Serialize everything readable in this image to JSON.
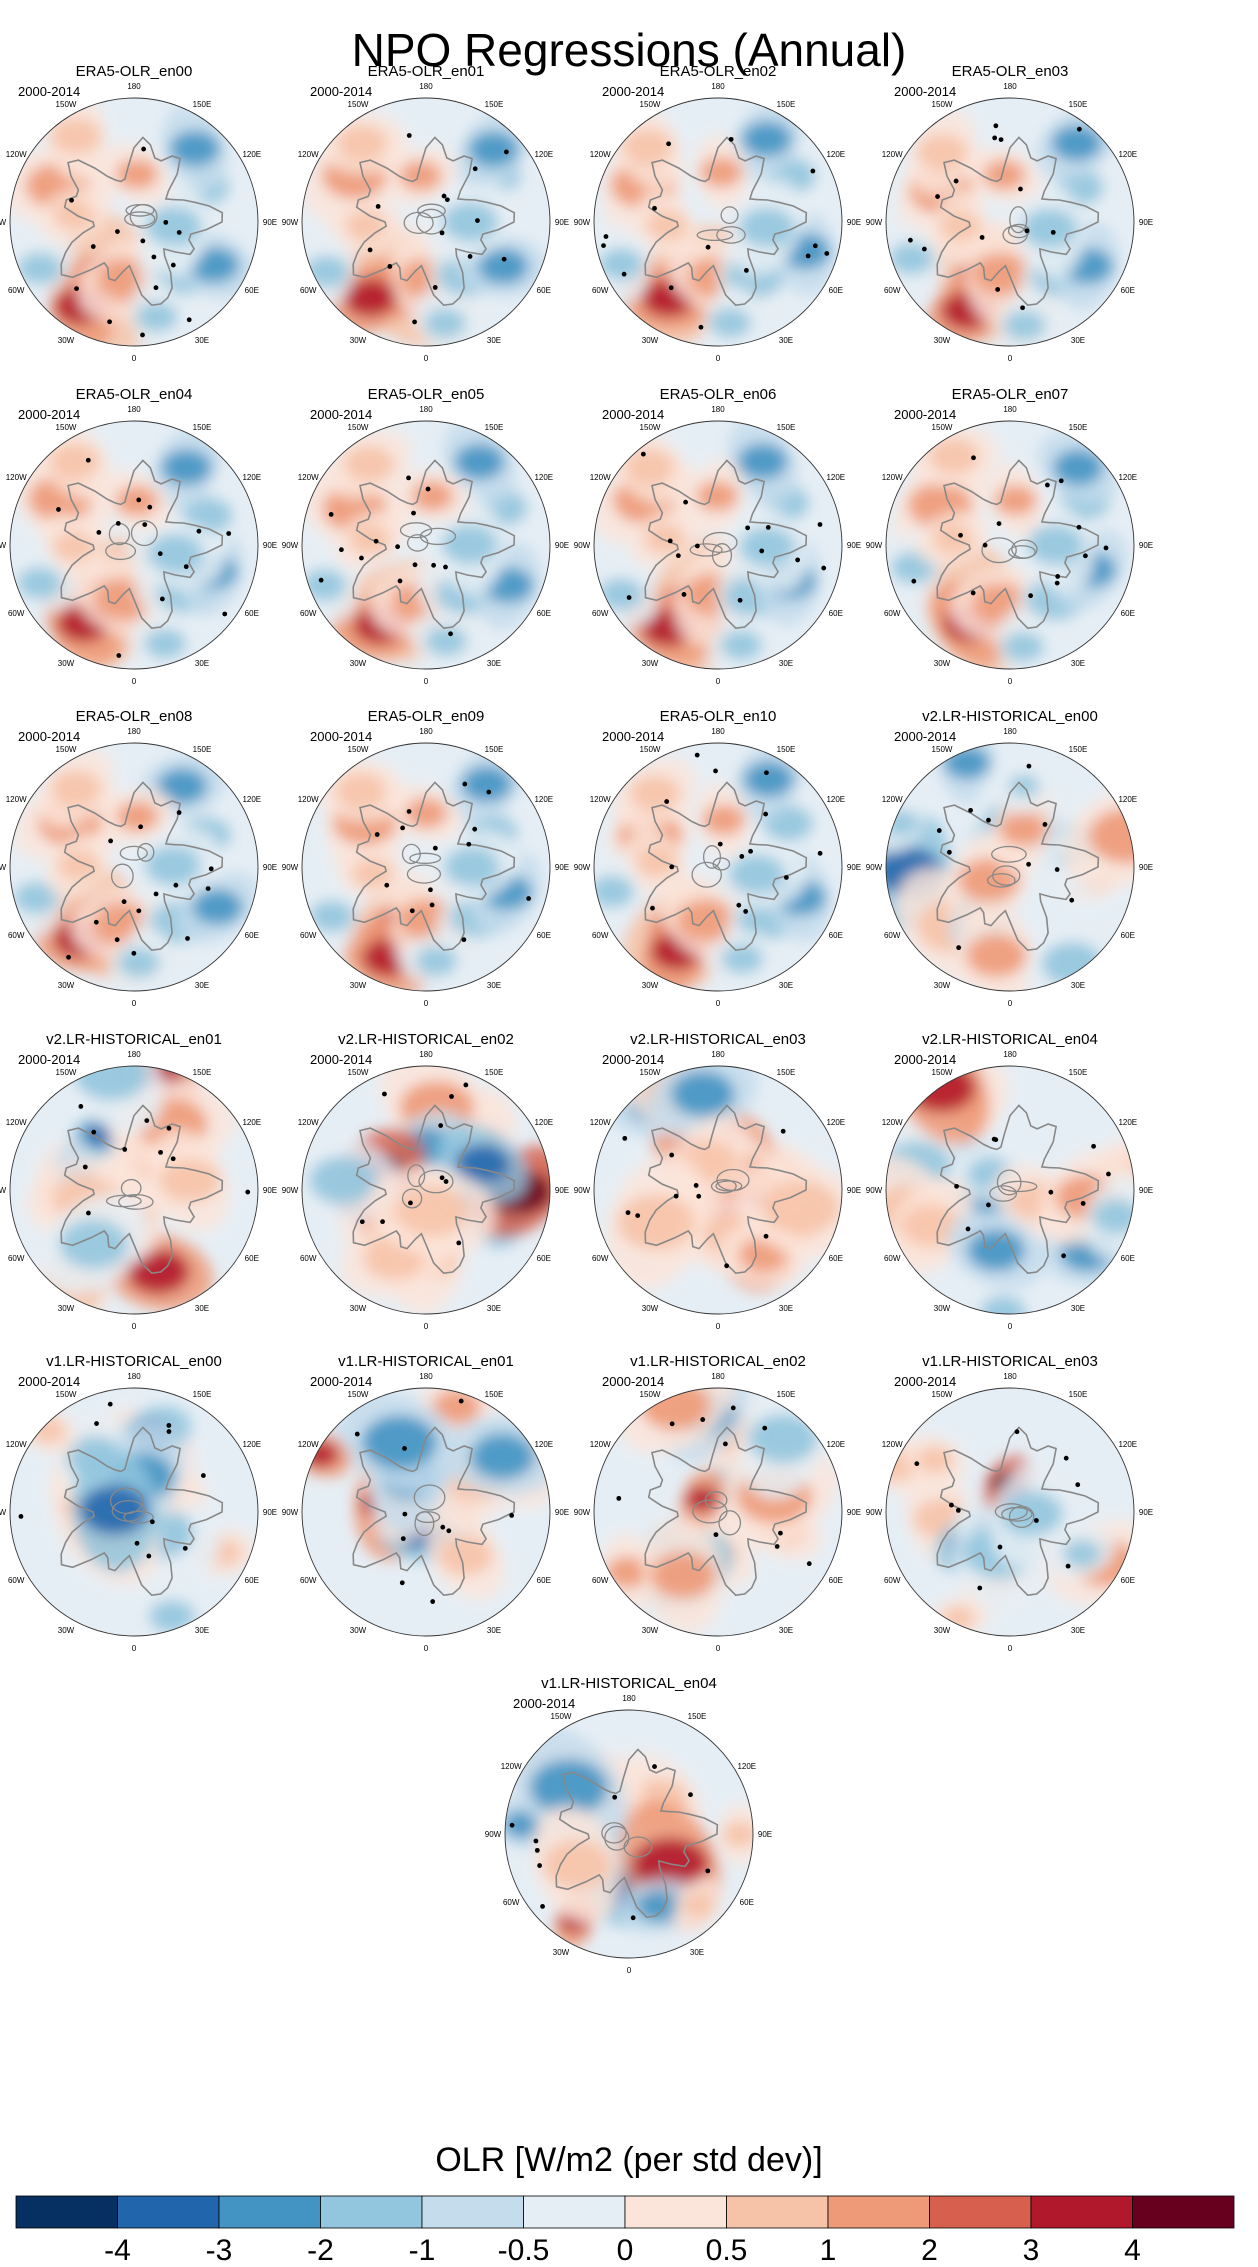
{
  "chart_data": {
    "type": "heatmap",
    "title": "NPO Regressions (Annual)",
    "projection": "north polar stereographic",
    "period": "2000-2014",
    "longitude_labels": [
      "180",
      "150E",
      "120E",
      "90E",
      "60E",
      "30E",
      "0",
      "30W",
      "60W",
      "90W",
      "120W",
      "150W"
    ],
    "panels": [
      "ERA5-OLR_en00",
      "ERA5-OLR_en01",
      "ERA5-OLR_en02",
      "ERA5-OLR_en03",
      "ERA5-OLR_en04",
      "ERA5-OLR_en05",
      "ERA5-OLR_en06",
      "ERA5-OLR_en07",
      "ERA5-OLR_en08",
      "ERA5-OLR_en09",
      "ERA5-OLR_en10",
      "v2.LR-HISTORICAL_en00",
      "v2.LR-HISTORICAL_en01",
      "v2.LR-HISTORICAL_en02",
      "v2.LR-HISTORICAL_en03",
      "v2.LR-HISTORICAL_en04",
      "v1.LR-HISTORICAL_en00",
      "v1.LR-HISTORICAL_en01",
      "v1.LR-HISTORICAL_en02",
      "v1.LR-HISTORICAL_en03",
      "v1.LR-HISTORICAL_en04"
    ],
    "colorbar": {
      "label": "OLR [W/m2 (per std dev)]",
      "ticks": [
        "-4",
        "-3",
        "-2",
        "-1",
        "-0.5",
        "0",
        "0.5",
        "1",
        "2",
        "3",
        "4"
      ],
      "colors": [
        "#053061",
        "#2166ac",
        "#4393c3",
        "#92c5de",
        "#c4dcec",
        "#e6eef5",
        "#fbe5da",
        "#f7c3a8",
        "#ee9a78",
        "#d6604d",
        "#b2182b",
        "#67001f"
      ]
    },
    "land_outline_color": "#888888",
    "significance_marker_color": "#000000"
  }
}
